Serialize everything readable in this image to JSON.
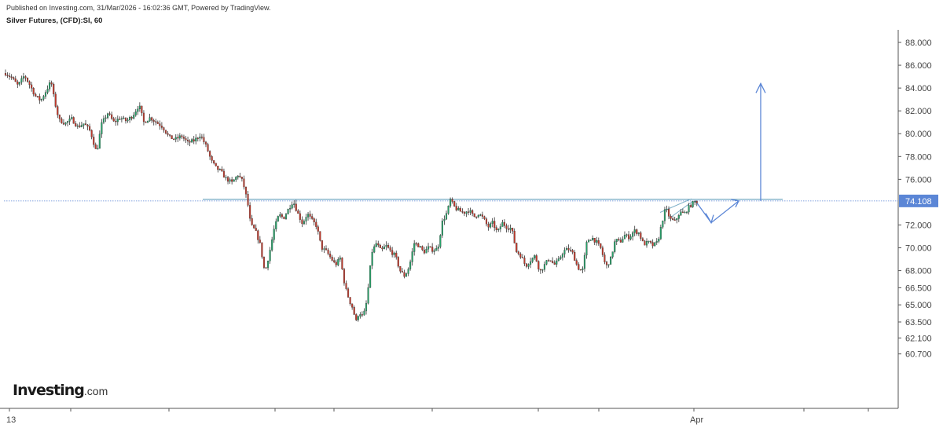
{
  "header": {
    "published": "Published on Investing.com, 31/Mar/2026 - 16:02:36 GMT, Powered by TradingView.",
    "title": "Silver Futures, (CFD):SI, 60"
  },
  "logo": {
    "brand": "Investing",
    "suffix": ".com"
  },
  "colors": {
    "up": "#26a269",
    "down": "#c0392b",
    "wick": "#333333",
    "annotation": "#5b86d6",
    "price_line": "#5b86d6",
    "price_label_bg": "#5b86d6",
    "price_label_text": "#ffffff"
  },
  "chart_data": {
    "type": "candlestick",
    "symbol": "Silver Futures, (CFD):SI, 60",
    "x_labels": [
      "13",
      "Apr"
    ],
    "y_ticks": [
      60.7,
      62.1,
      63.5,
      65.0,
      66.5,
      68.0,
      70.0,
      72.0,
      74.108,
      76.0,
      78.0,
      80.0,
      82.0,
      84.0,
      86.0,
      88.0
    ],
    "y_tick_labels": [
      "60.700",
      "62.100",
      "63.500",
      "65.000",
      "66.500",
      "68.000",
      "70.000",
      "72.000",
      "74.108",
      "76.000",
      "78.000",
      "80.000",
      "82.000",
      "84.000",
      "86.000",
      "88.000"
    ],
    "last_price": 74.108,
    "last_price_label": "74.108",
    "price_trajectory": [
      [
        0,
        85.3
      ],
      [
        8,
        84.9
      ],
      [
        16,
        84.2
      ],
      [
        24,
        85.1
      ],
      [
        30,
        84.4
      ],
      [
        38,
        83.3
      ],
      [
        45,
        82.9
      ],
      [
        52,
        83.8
      ],
      [
        58,
        84.6
      ],
      [
        62,
        83.0
      ],
      [
        68,
        81.2
      ],
      [
        76,
        80.9
      ],
      [
        84,
        81.3
      ],
      [
        92,
        80.6
      ],
      [
        100,
        80.9
      ],
      [
        108,
        80.2
      ],
      [
        116,
        78.3
      ],
      [
        122,
        80.8
      ],
      [
        130,
        81.8
      ],
      [
        138,
        81.0
      ],
      [
        146,
        81.4
      ],
      [
        154,
        81.1
      ],
      [
        162,
        81.6
      ],
      [
        170,
        82.5
      ],
      [
        176,
        81.0
      ],
      [
        184,
        81.4
      ],
      [
        192,
        81.0
      ],
      [
        200,
        80.6
      ],
      [
        208,
        79.7
      ],
      [
        216,
        79.5
      ],
      [
        224,
        79.8
      ],
      [
        232,
        79.2
      ],
      [
        240,
        79.4
      ],
      [
        248,
        79.9
      ],
      [
        256,
        78.8
      ],
      [
        262,
        77.6
      ],
      [
        268,
        77.0
      ],
      [
        274,
        76.7
      ],
      [
        280,
        76.1
      ],
      [
        288,
        75.7
      ],
      [
        296,
        76.4
      ],
      [
        302,
        75.8
      ],
      [
        308,
        74.0
      ],
      [
        312,
        72.0
      ],
      [
        318,
        71.5
      ],
      [
        324,
        70.3
      ],
      [
        330,
        67.8
      ],
      [
        336,
        69.6
      ],
      [
        342,
        71.7
      ],
      [
        348,
        72.9
      ],
      [
        354,
        72.6
      ],
      [
        360,
        73.4
      ],
      [
        366,
        74.1
      ],
      [
        372,
        73.0
      ],
      [
        378,
        72.1
      ],
      [
        384,
        73.0
      ],
      [
        390,
        72.4
      ],
      [
        396,
        71.9
      ],
      [
        402,
        70.0
      ],
      [
        408,
        69.7
      ],
      [
        414,
        69.1
      ],
      [
        420,
        68.5
      ],
      [
        426,
        69.1
      ],
      [
        432,
        66.6
      ],
      [
        438,
        65.3
      ],
      [
        442,
        64.7
      ],
      [
        446,
        63.5
      ],
      [
        450,
        64.4
      ],
      [
        455,
        63.9
      ],
      [
        460,
        65.4
      ],
      [
        466,
        69.6
      ],
      [
        472,
        70.4
      ],
      [
        478,
        69.7
      ],
      [
        484,
        70.2
      ],
      [
        490,
        69.7
      ],
      [
        496,
        69.3
      ],
      [
        502,
        68.0
      ],
      [
        508,
        67.5
      ],
      [
        514,
        68.4
      ],
      [
        520,
        70.4
      ],
      [
        526,
        70.2
      ],
      [
        532,
        69.6
      ],
      [
        538,
        70.0
      ],
      [
        544,
        69.8
      ],
      [
        550,
        69.9
      ],
      [
        556,
        72.3
      ],
      [
        562,
        73.1
      ],
      [
        566,
        74.2
      ],
      [
        572,
        73.5
      ],
      [
        578,
        73.2
      ],
      [
        584,
        73.1
      ],
      [
        590,
        73.3
      ],
      [
        596,
        72.7
      ],
      [
        602,
        73.0
      ],
      [
        608,
        72.6
      ],
      [
        614,
        71.8
      ],
      [
        620,
        72.2
      ],
      [
        626,
        71.3
      ],
      [
        632,
        72.2
      ],
      [
        638,
        71.8
      ],
      [
        644,
        71.7
      ],
      [
        650,
        69.7
      ],
      [
        656,
        69.3
      ],
      [
        662,
        68.4
      ],
      [
        668,
        68.9
      ],
      [
        674,
        69.3
      ],
      [
        680,
        67.9
      ],
      [
        686,
        68.5
      ],
      [
        692,
        69.1
      ],
      [
        698,
        68.5
      ],
      [
        704,
        68.9
      ],
      [
        710,
        69.7
      ],
      [
        716,
        69.9
      ],
      [
        722,
        69.5
      ],
      [
        728,
        68.3
      ],
      [
        734,
        67.9
      ],
      [
        740,
        70.6
      ],
      [
        746,
        70.9
      ],
      [
        752,
        70.5
      ],
      [
        758,
        69.9
      ],
      [
        764,
        68.3
      ],
      [
        770,
        69.0
      ],
      [
        776,
        70.7
      ],
      [
        782,
        70.5
      ],
      [
        788,
        71.1
      ],
      [
        794,
        70.9
      ],
      [
        800,
        71.5
      ],
      [
        806,
        71.3
      ],
      [
        812,
        70.3
      ],
      [
        818,
        70.5
      ],
      [
        824,
        70.2
      ],
      [
        830,
        70.5
      ],
      [
        836,
        72.4
      ],
      [
        840,
        73.5
      ],
      [
        846,
        72.5
      ],
      [
        852,
        72.3
      ],
      [
        858,
        73.1
      ],
      [
        864,
        73.0
      ],
      [
        870,
        73.6
      ],
      [
        876,
        74.0
      ],
      [
        882,
        74.108
      ]
    ],
    "annotations": {
      "resistance_level": 74.25,
      "projection_dip": 72.2,
      "projection_target": 84.4
    }
  }
}
